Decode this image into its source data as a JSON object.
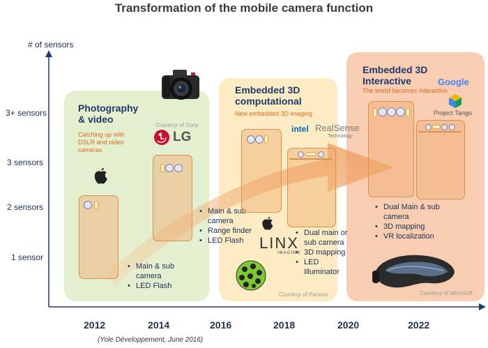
{
  "title": "Transformation of the mobile camera function",
  "y_axis": {
    "title": "# of sensors",
    "ticks": [
      "3+ sensors",
      "3 sensors",
      "2 sensors",
      "1 sensor"
    ]
  },
  "x_axis": {
    "ticks": [
      "2012",
      "2014",
      "2016",
      "2018",
      "2020",
      "2022"
    ]
  },
  "source": "(Yole Développement, June 2016)",
  "panels": [
    {
      "title_line1": "Photography",
      "title_line2": "& video",
      "subtitle_line1": "Catching up with",
      "subtitle_line2": "DSLR and video",
      "subtitle_line3": "cameras",
      "credit": "Courtesy of Sony",
      "bullets_a": [
        "Main & sub camera",
        "LED Flash"
      ],
      "bullets_b": [
        "Main & sub camera",
        "Range finder",
        "LED Flash"
      ],
      "logo_lg": "LG",
      "color": "#e4efcf"
    },
    {
      "title_line1": "Embedded 3D",
      "title_line2": "computational",
      "subtitle": "New embedded 3D imaging",
      "credit": "Courtesy of Panono",
      "bullets": [
        "Dual main or sub camera",
        "3D mapping",
        "LED Illuminator"
      ],
      "logo_intel": "intel",
      "logo_realsense": "RealSense",
      "logo_technology": "Technology",
      "logo_linx": "LINX",
      "logo_imaging": "IMAGING",
      "color": "#fdebc4"
    },
    {
      "title_line1": "Embedded 3D",
      "title_line2": "Interactive",
      "subtitle": "The world becomes interactive",
      "credit": "Courtesy of Microsoft",
      "bullets": [
        "Dual Main & sub camera",
        "3D mapping",
        "VR localization"
      ],
      "logo_google": "Google",
      "logo_tango": "Project Tango",
      "color": "#f8cdb2"
    }
  ],
  "colors": {
    "axis": "#1e3a6b",
    "title_text": "#1e3a6b",
    "subtitle_text": "#e06a1c",
    "arrow": "#f0a868"
  },
  "icons": [
    "apple-logo-icon",
    "dslr-camera-icon",
    "panono-ball-camera-icon",
    "vr-headset-icon",
    "project-tango-cube-icon"
  ]
}
